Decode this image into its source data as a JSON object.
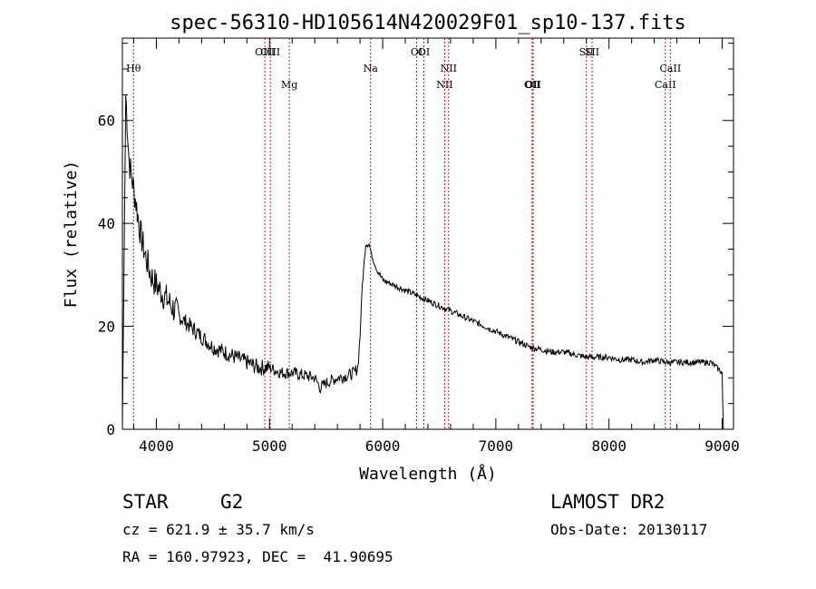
{
  "chart_data": {
    "type": "line",
    "title": "spec-56310-HD105614N420029F01_sp10-137.fits",
    "xlabel": "Wavelength (Å)",
    "ylabel": "Flux (relative)",
    "xlim": [
      3700,
      9100
    ],
    "ylim": [
      0,
      76
    ],
    "x_ticks": [
      "4000",
      "5000",
      "6000",
      "7000",
      "8000",
      "9000"
    ],
    "x_tick_values": [
      4000,
      5000,
      6000,
      7000,
      8000,
      9000
    ],
    "y_ticks": [
      "0",
      "20",
      "40",
      "60"
    ],
    "y_tick_values": [
      0,
      20,
      40,
      60
    ],
    "grid": false,
    "line_color": "#000000",
    "marker_color": "#b22222",
    "lines": [
      {
        "label": "Hθ",
        "x": 3798,
        "row": 1
      },
      {
        "label": "OIII",
        "x": 4959,
        "row": 0
      },
      {
        "label": "OIII",
        "x": 5007,
        "row": 0
      },
      {
        "label": "Mg",
        "x": 5175,
        "row": 2
      },
      {
        "label": "Na",
        "x": 5893,
        "row": 1
      },
      {
        "label": "OI",
        "x": 6300,
        "row": 0
      },
      {
        "label": "OI",
        "x": 6364,
        "row": 0
      },
      {
        "label": "NII",
        "x": 6548,
        "row": 2
      },
      {
        "label": "NII",
        "x": 6583,
        "row": 1
      },
      {
        "label": "OII",
        "x": 7320,
        "row": 2
      },
      {
        "label": "OII",
        "x": 7330,
        "row": 2
      },
      {
        "label": "SII",
        "x": 7800,
        "row": 0
      },
      {
        "label": "SII",
        "x": 7850,
        "row": 0
      },
      {
        "label": "CaII",
        "x": 8498,
        "row": 2
      },
      {
        "label": "CaII",
        "x": 8542,
        "row": 1
      }
    ],
    "series": [
      {
        "x": [
          3700,
          3730,
          3760,
          3790,
          3820,
          3860,
          3900,
          3950,
          4000,
          4100,
          4200,
          4300,
          4400,
          4500,
          4600,
          4700,
          4800,
          4900,
          5000,
          5100,
          5200,
          5300,
          5400,
          5450,
          5500,
          5600,
          5700,
          5750,
          5780,
          5800,
          5820,
          5850,
          5880,
          5900,
          5950,
          6000,
          6100,
          6200,
          6300,
          6400,
          6500,
          6600,
          6700,
          6800,
          6900,
          7000,
          7100,
          7200,
          7300,
          7400,
          7500,
          7600,
          7700,
          7800,
          7900,
          8000,
          8100,
          8200,
          8300,
          8400,
          8500,
          8600,
          8700,
          8800,
          8900,
          8950,
          9000,
          9010
        ],
        "y": [
          0,
          65,
          52,
          48,
          44,
          38,
          34,
          30,
          28,
          25,
          22,
          20,
          18,
          16,
          15,
          14,
          13,
          12,
          12,
          11,
          11,
          10.5,
          10,
          8,
          9,
          10,
          10.5,
          11,
          12,
          18,
          28,
          36,
          36,
          34,
          31,
          29,
          28,
          27,
          26,
          25,
          24,
          23,
          22,
          21,
          20,
          19,
          18,
          17,
          16,
          15.5,
          15,
          15,
          14.5,
          14,
          14,
          14,
          13.5,
          13.5,
          13,
          13.5,
          13,
          13,
          13,
          13,
          13,
          12,
          11,
          0
        ]
      }
    ]
  },
  "footer": {
    "class_label": "STAR",
    "subclass": "G2",
    "survey": "LAMOST DR2",
    "cz": "cz = 621.9 ± 35.7 km/s",
    "obs_date": "Obs-Date: 20130117",
    "coords": "RA = 160.97923, DEC =  41.90695"
  }
}
